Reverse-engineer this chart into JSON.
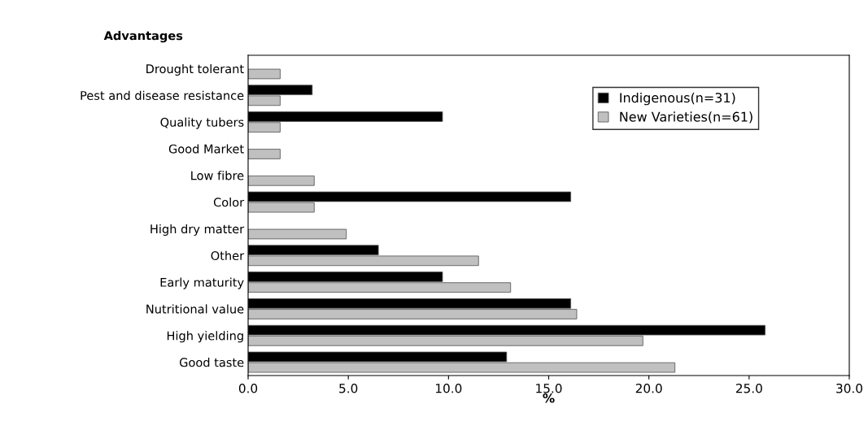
{
  "chart_data": {
    "type": "bar",
    "orientation": "horizontal",
    "ylabel": "Advantages",
    "xlabel": "%",
    "categories": [
      "Drought tolerant",
      "Pest and disease resistance",
      "Quality tubers",
      "Good Market",
      "Low fibre",
      "Color",
      "High dry matter",
      "Other",
      "Early maturity",
      "Nutritional value",
      "High yielding",
      "Good taste"
    ],
    "series": [
      {
        "name": "Indigenous(n=31)",
        "color": "#000000",
        "values": [
          null,
          3.2,
          9.7,
          null,
          null,
          16.1,
          null,
          6.5,
          9.7,
          16.1,
          25.8,
          12.9
        ]
      },
      {
        "name": "New Varieties(n=61)",
        "color": "#c0c0c0",
        "values": [
          1.6,
          1.6,
          1.6,
          1.6,
          3.3,
          3.3,
          4.9,
          11.5,
          13.1,
          16.4,
          19.7,
          21.3
        ]
      }
    ],
    "xlim": [
      0,
      30
    ],
    "xticks": [
      {
        "value": 0,
        "label": "0.0"
      },
      {
        "value": 5,
        "label": "5.0"
      },
      {
        "value": 10,
        "label": "10.0"
      },
      {
        "value": 15,
        "label": "15.0"
      },
      {
        "value": 20,
        "label": "20.0"
      },
      {
        "value": 25,
        "label": "25.0"
      },
      {
        "value": 30,
        "label": "30.0"
      }
    ],
    "grid": false,
    "legend": "top right"
  }
}
